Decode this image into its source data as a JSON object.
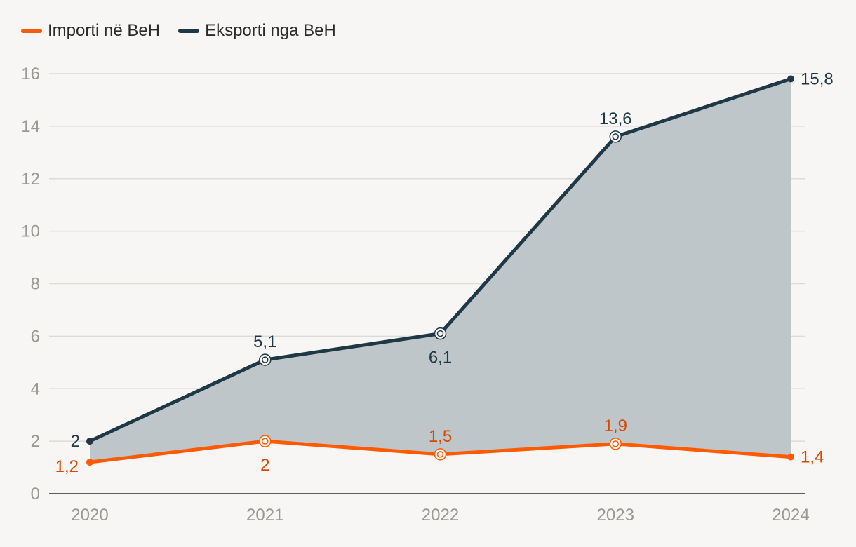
{
  "chart_data": {
    "type": "line",
    "x": [
      "2020",
      "2021",
      "2022",
      "2023",
      "2024"
    ],
    "series": [
      {
        "name": "Importi në BeH",
        "color": "#ff5a00",
        "label_color": "#d84600",
        "values": [
          1.2,
          2,
          1.5,
          1.9,
          1.4
        ],
        "labels": [
          "1,2",
          "2",
          "1,5",
          "1,9",
          "1,4"
        ]
      },
      {
        "name": "Eksporti nga BeH",
        "color": "#1f3846",
        "label_color": "#1f3846",
        "values": [
          2,
          5.1,
          6.1,
          13.6,
          15.8
        ],
        "labels": [
          "2",
          "5,1",
          "6,1",
          "13,6",
          "15,8"
        ]
      }
    ],
    "fill_between": {
      "color": "#bec6ca"
    },
    "ylim": [
      0,
      16
    ],
    "yticks": [
      0,
      2,
      4,
      6,
      8,
      10,
      12,
      14,
      16
    ],
    "grid": true,
    "legend_position": "top-left"
  }
}
